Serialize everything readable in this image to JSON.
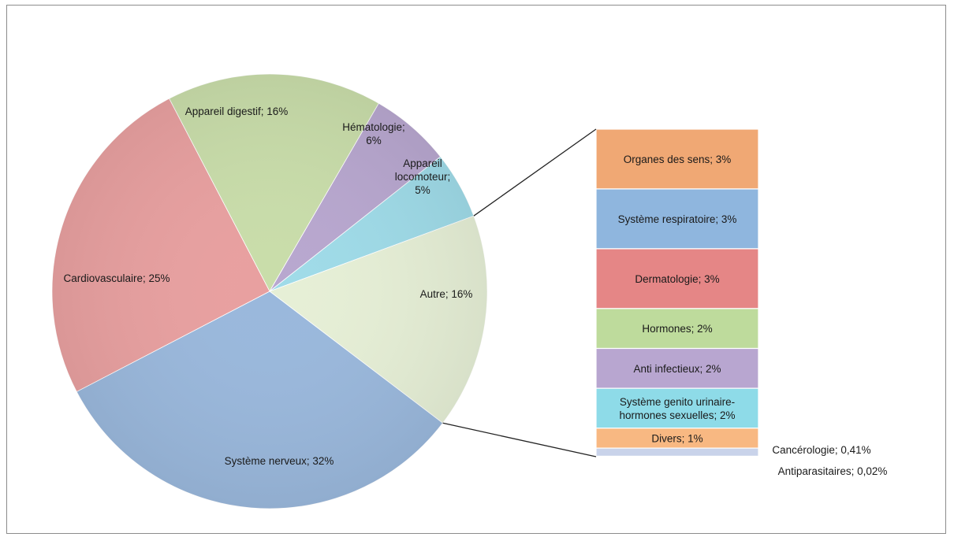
{
  "chart_data": {
    "type": "pie",
    "subtype": "bar-of-pie",
    "pie": [
      {
        "label": "Appareil digestif; 16%",
        "value": 16,
        "color": "#c9ddaa"
      },
      {
        "label": "Hématologie; 6%",
        "value": 6,
        "color": "#b8a7cf"
      },
      {
        "label": "Appareil locomoteur; 5%",
        "value": 5,
        "color": "#9fdbe8"
      },
      {
        "label": "Autre; 16%",
        "value": 16,
        "color": "#e6efd6"
      },
      {
        "label": "Système nerveux; 32%",
        "value": 32,
        "color": "#9ab8dc"
      },
      {
        "label": "Cardiovasculaire; 25%",
        "value": 25,
        "color": "#e8a0a0"
      }
    ],
    "bar": [
      {
        "label": "Organes des sens; 3%",
        "value": 3,
        "color": "#f0a874"
      },
      {
        "label": "Système respiratoire; 3%",
        "value": 3,
        "color": "#8fb6de"
      },
      {
        "label": "Dermatologie; 3%",
        "value": 3,
        "color": "#e58686"
      },
      {
        "label": "Hormones; 2%",
        "value": 2,
        "color": "#bedb9c"
      },
      {
        "label": "Anti infectieux; 2%",
        "value": 2,
        "color": "#b8a6d0"
      },
      {
        "label": "Système genito urinaire-hormones sexuelles; 2%",
        "value": 2,
        "color": "#8edbe8"
      },
      {
        "label": "Divers; 1%",
        "value": 1,
        "color": "#f8b882"
      },
      {
        "label": "Cancérologie; 0,41%",
        "value": 0.41,
        "color": "#c9d3ea"
      },
      {
        "label": "Antiparasitaires; 0,02%",
        "value": 0.02,
        "color": "#d7dce8"
      }
    ],
    "title": "",
    "legend": "none"
  }
}
